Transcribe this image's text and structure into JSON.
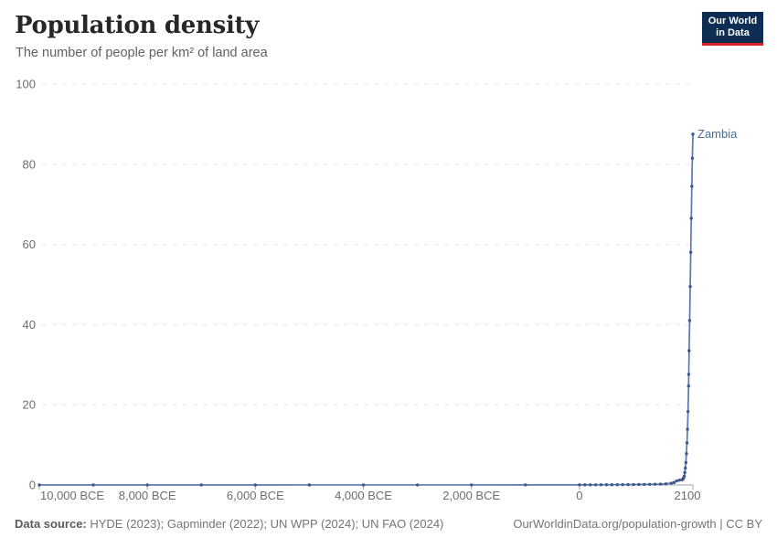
{
  "header": {
    "title": "Population density",
    "subtitle": "The number of people per km² of land area"
  },
  "logo": {
    "line1": "Our World",
    "line2": "in Data",
    "bg_color": "#0d2e52",
    "accent_color": "#d8232a"
  },
  "footer": {
    "datasource_label": "Data source:",
    "datasource_text": " HYDE (2023); Gapminder (2022); UN WPP (2024); UN FAO (2024)",
    "link_text": "OurWorldinData.org/population-growth | CC BY"
  },
  "chart_data": {
    "type": "line",
    "title": "Population density",
    "subtitle": "The number of people per km² of land area",
    "xlabel": "",
    "ylabel": "",
    "xlim": [
      -10000,
      2100
    ],
    "ylim": [
      0,
      100
    ],
    "grid": "dashed-horizontal",
    "legend_position": "inline-right-of-line",
    "x_ticks": [
      {
        "value": -10000,
        "label": "10,000 BCE"
      },
      {
        "value": -8000,
        "label": "8,000 BCE"
      },
      {
        "value": -6000,
        "label": "6,000 BCE"
      },
      {
        "value": -4000,
        "label": "4,000 BCE"
      },
      {
        "value": -2000,
        "label": "2,000 BCE"
      },
      {
        "value": 0,
        "label": "0"
      },
      {
        "value": 2100,
        "label": "2100"
      }
    ],
    "y_ticks": [
      {
        "value": 0,
        "label": "0"
      },
      {
        "value": 20,
        "label": "20"
      },
      {
        "value": 40,
        "label": "40"
      },
      {
        "value": 60,
        "label": "60"
      },
      {
        "value": 80,
        "label": "80"
      },
      {
        "value": 100,
        "label": "100"
      }
    ],
    "colors": {
      "line": "#5b79ae",
      "marker": "#3c588c",
      "series_label": "#4c6a9c",
      "grid": "#e8e8e8",
      "axis": "#a6a6a6",
      "tick_label": "#6d6d6d"
    },
    "series": [
      {
        "name": "Zambia",
        "points": [
          [
            -10000,
            0.003
          ],
          [
            -9000,
            0.004
          ],
          [
            -8000,
            0.004
          ],
          [
            -7000,
            0.005
          ],
          [
            -6000,
            0.006
          ],
          [
            -5000,
            0.008
          ],
          [
            -4000,
            0.01
          ],
          [
            -3000,
            0.013
          ],
          [
            -2000,
            0.017
          ],
          [
            -1000,
            0.022
          ],
          [
            0,
            0.03
          ],
          [
            100,
            0.035
          ],
          [
            200,
            0.04
          ],
          [
            300,
            0.045
          ],
          [
            400,
            0.05
          ],
          [
            500,
            0.055
          ],
          [
            600,
            0.06
          ],
          [
            700,
            0.07
          ],
          [
            800,
            0.08
          ],
          [
            900,
            0.09
          ],
          [
            1000,
            0.1
          ],
          [
            1100,
            0.12
          ],
          [
            1200,
            0.14
          ],
          [
            1300,
            0.16
          ],
          [
            1400,
            0.19
          ],
          [
            1500,
            0.22
          ],
          [
            1600,
            0.28
          ],
          [
            1700,
            0.45
          ],
          [
            1750,
            0.6
          ],
          [
            1800,
            1.0
          ],
          [
            1850,
            1.2
          ],
          [
            1900,
            1.3
          ],
          [
            1910,
            1.4
          ],
          [
            1920,
            1.6
          ],
          [
            1930,
            1.8
          ],
          [
            1940,
            2.2
          ],
          [
            1950,
            3.1
          ],
          [
            1960,
            4.2
          ],
          [
            1970,
            5.6
          ],
          [
            1980,
            7.8
          ],
          [
            1990,
            10.5
          ],
          [
            2000,
            13.9
          ],
          [
            2010,
            18.3
          ],
          [
            2020,
            24.7
          ],
          [
            2023,
            27.6
          ],
          [
            2030,
            33.5
          ],
          [
            2040,
            41
          ],
          [
            2050,
            49.5
          ],
          [
            2060,
            58
          ],
          [
            2070,
            66.5
          ],
          [
            2080,
            74.5
          ],
          [
            2090,
            81.5
          ],
          [
            2100,
            87.5
          ]
        ]
      }
    ]
  }
}
